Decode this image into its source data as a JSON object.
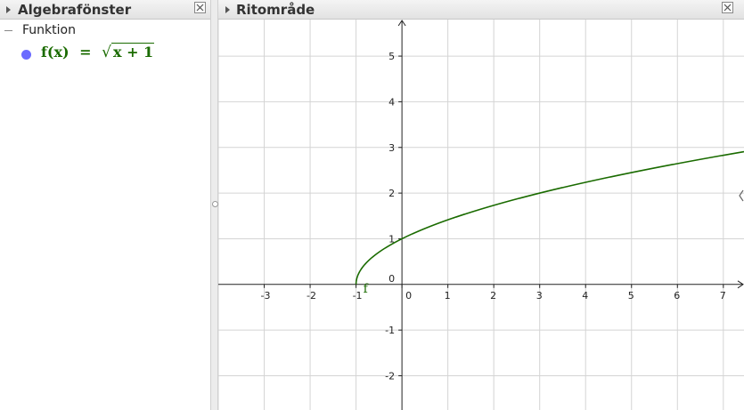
{
  "algebra_panel": {
    "title": "Algebrafönster",
    "category": "Funktion",
    "object": {
      "lhs": "f(x)",
      "eq": "=",
      "radicand": "x + 1",
      "color": "#1a6b00",
      "dot_color": "#6b6bff"
    }
  },
  "graphics_panel": {
    "title": "Ritområde",
    "function_label": "f"
  },
  "chart_data": {
    "type": "line",
    "function": "sqrt(x+1)",
    "domain_start": -1,
    "xlim": [
      -4,
      7.45
    ],
    "ylim": [
      -2.75,
      5.8
    ],
    "x_ticks": [
      -3,
      -2,
      -1,
      0,
      1,
      2,
      3,
      4,
      5,
      6,
      7
    ],
    "y_ticks": [
      -2,
      -1,
      0,
      1,
      2,
      3,
      4,
      5
    ],
    "grid": true,
    "series": [
      {
        "color": "#1a6b00"
      }
    ]
  },
  "icons": [
    "triangle-right-icon",
    "close-icon"
  ]
}
